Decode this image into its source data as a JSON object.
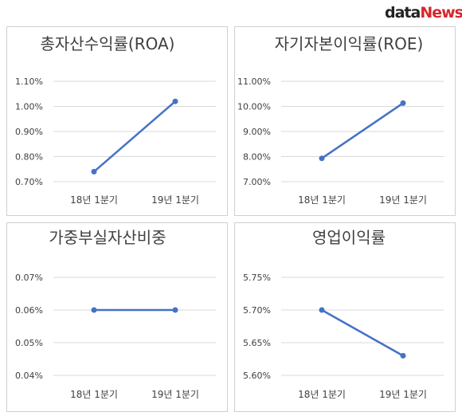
{
  "brand": {
    "part1": "data",
    "part2": "News",
    "color_dark": "#222222",
    "color_red": "#d6262c"
  },
  "style": {
    "line_color": "#4472c4",
    "grid_color": "#d9d9d9",
    "text_color": "#404040"
  },
  "chart_data": [
    {
      "type": "line",
      "title": "총자산수익률(ROA)",
      "categories": [
        "18년 1분기",
        "19년 1분기"
      ],
      "values": [
        0.74,
        1.02
      ],
      "yticks": [
        "0.70%",
        "0.80%",
        "0.90%",
        "1.00%",
        "1.10%"
      ],
      "ylim": [
        0.7,
        1.1
      ],
      "grid": true,
      "legend": "none"
    },
    {
      "type": "line",
      "title": "자기자본이익률(ROE)",
      "categories": [
        "18년 1분기",
        "19년 1분기"
      ],
      "values": [
        7.93,
        10.13
      ],
      "yticks": [
        "7.00%",
        "8.00%",
        "9.00%",
        "10.00%",
        "11.00%"
      ],
      "ylim": [
        7.0,
        11.0
      ],
      "grid": true,
      "legend": "none"
    },
    {
      "type": "line",
      "title": "가중부실자산비중",
      "categories": [
        "18년 1분기",
        "19년 1분기"
      ],
      "values": [
        0.06,
        0.06
      ],
      "yticks": [
        "0.04%",
        "0.05%",
        "0.06%",
        "0.07%"
      ],
      "ylim": [
        0.04,
        0.07
      ],
      "grid": true,
      "legend": "none"
    },
    {
      "type": "line",
      "title": "영업이익률",
      "categories": [
        "18년 1분기",
        "19년 1분기"
      ],
      "values": [
        5.7,
        5.63
      ],
      "yticks": [
        "5.60%",
        "5.65%",
        "5.70%",
        "5.75%"
      ],
      "ylim": [
        5.6,
        5.75
      ],
      "grid": true,
      "legend": "none"
    }
  ]
}
